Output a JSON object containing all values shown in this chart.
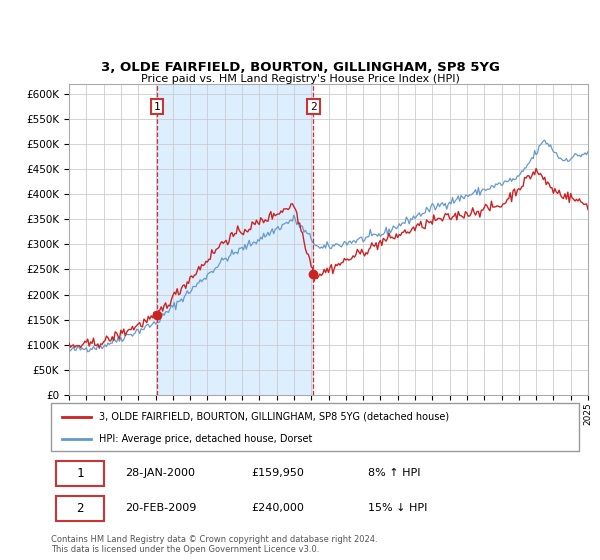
{
  "title1": "3, OLDE FAIRFIELD, BOURTON, GILLINGHAM, SP8 5YG",
  "title2": "Price paid vs. HM Land Registry's House Price Index (HPI)",
  "sale1_year": 2000.08,
  "sale1_price": 159950,
  "sale2_year": 2009.13,
  "sale2_price": 240000,
  "sale1_date": "28-JAN-2000",
  "sale1_pct": "8% ↑ HPI",
  "sale2_date": "20-FEB-2009",
  "sale2_pct": "15% ↓ HPI",
  "hpi_color": "#6699cc",
  "price_color": "#cc2222",
  "shade_color": "#ddeeff",
  "vline_color": "#cc3333",
  "ylim": [
    0,
    620000
  ],
  "yticks": [
    0,
    50000,
    100000,
    150000,
    200000,
    250000,
    300000,
    350000,
    400000,
    450000,
    500000,
    550000,
    600000
  ],
  "legend1": "3, OLDE FAIRFIELD, BOURTON, GILLINGHAM, SP8 5YG (detached house)",
  "legend2": "HPI: Average price, detached house, Dorset",
  "footer_text": "Contains HM Land Registry data © Crown copyright and database right 2024.\nThis data is licensed under the Open Government Licence v3.0."
}
